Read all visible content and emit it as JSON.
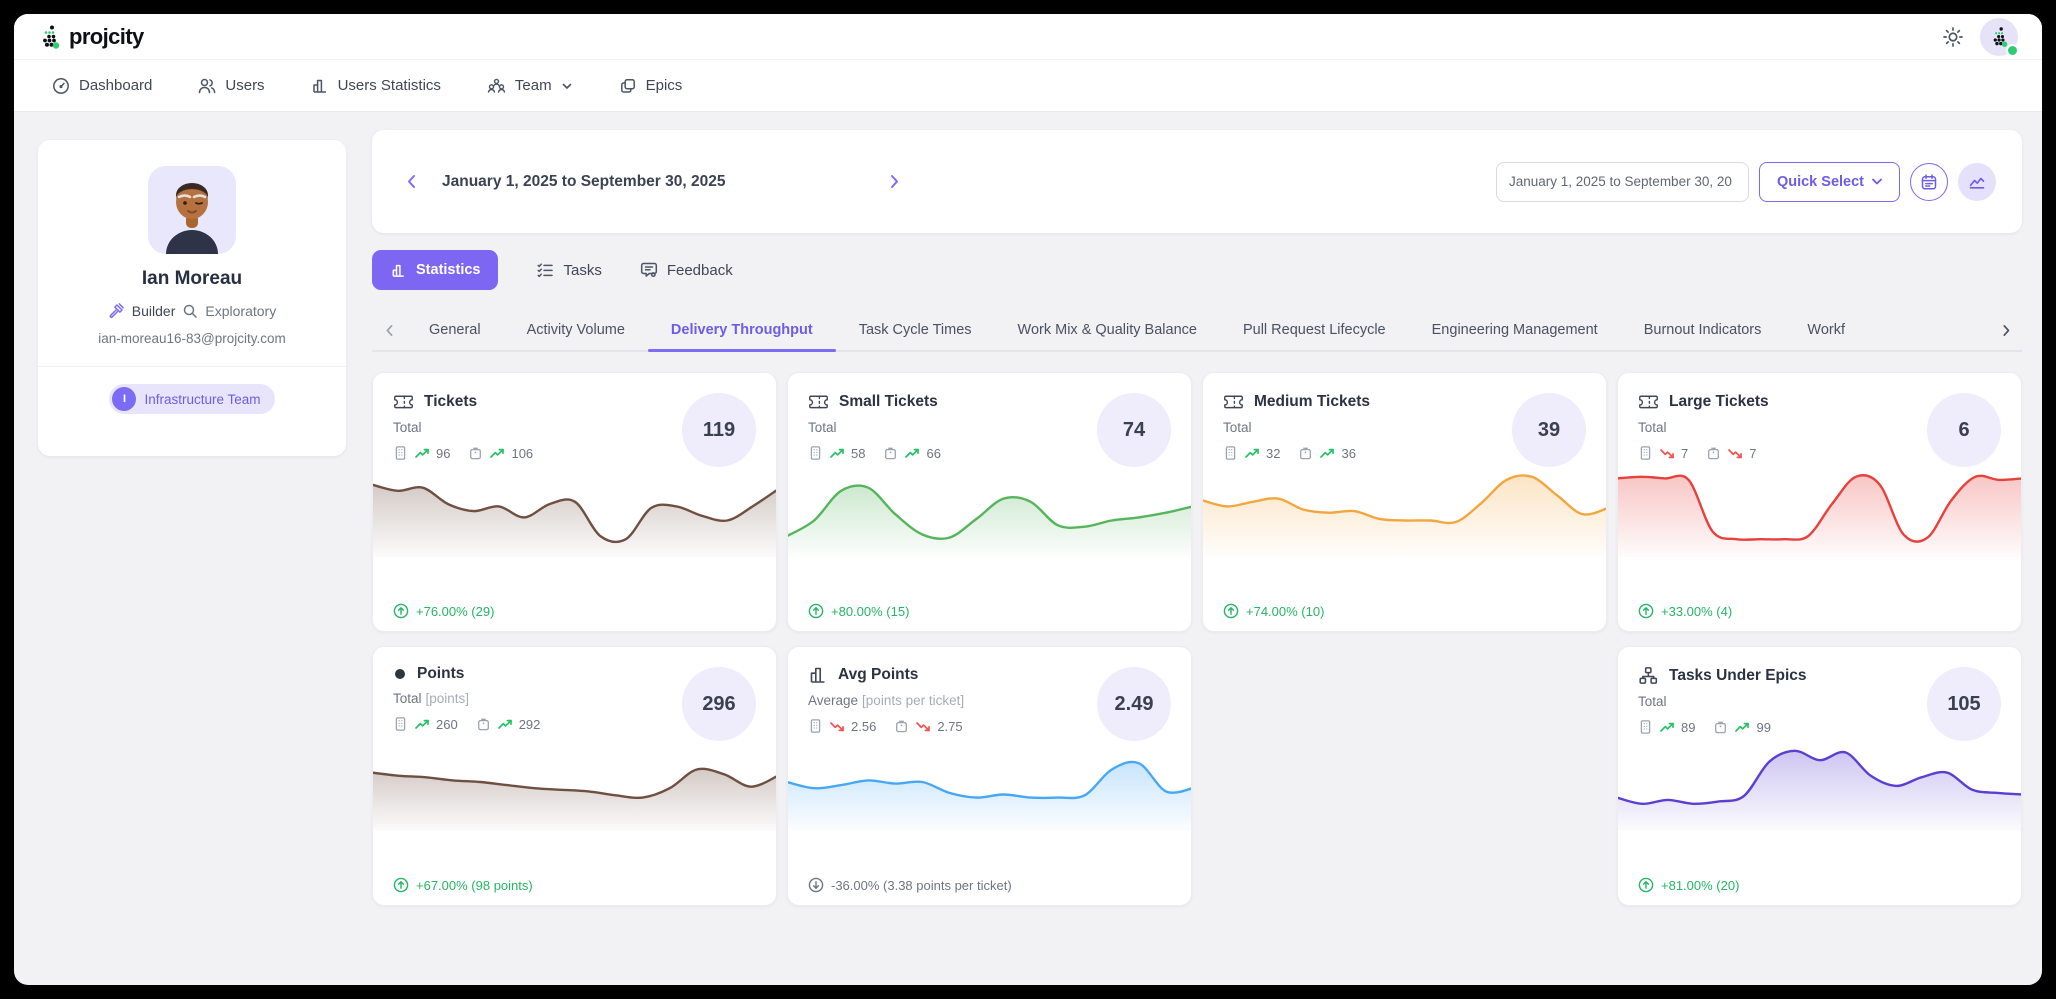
{
  "app": {
    "brand": "projcity"
  },
  "nav": {
    "items": [
      {
        "label": "Dashboard"
      },
      {
        "label": "Users"
      },
      {
        "label": "Users Statistics"
      },
      {
        "label": "Team"
      },
      {
        "label": "Epics"
      }
    ]
  },
  "profile": {
    "name": "Ian Moreau",
    "role": "Builder",
    "trait": "Exploratory",
    "email": "ian-moreau16-83@projcity.com",
    "team_badge": {
      "initial": "I",
      "label": "Infrastructure Team"
    }
  },
  "date_bar": {
    "range_label": "January 1, 2025 to September 30, 2025",
    "input_value": "January 1, 2025 to September 30, 20",
    "quick_select_label": "Quick Select"
  },
  "view_tabs": [
    {
      "label": "Statistics",
      "active": true
    },
    {
      "label": "Tasks",
      "active": false
    },
    {
      "label": "Feedback",
      "active": false
    }
  ],
  "sub_tabs": {
    "items": [
      {
        "label": "General"
      },
      {
        "label": "Activity Volume"
      },
      {
        "label": "Delivery Throughput",
        "active": true
      },
      {
        "label": "Task Cycle Times"
      },
      {
        "label": "Work Mix & Quality Balance"
      },
      {
        "label": "Pull Request Lifecycle"
      },
      {
        "label": "Engineering Management"
      },
      {
        "label": "Burnout Indicators"
      },
      {
        "label": "Workf"
      }
    ]
  },
  "cards": [
    {
      "title": "Tickets",
      "subtitle": "Total",
      "unit": "",
      "org": {
        "value": "96",
        "trend": "up"
      },
      "individual": {
        "value": "106",
        "trend": "up"
      },
      "big_value": "119",
      "change": {
        "text": "+76.00% (29)",
        "direction": "up",
        "tone": "positive"
      },
      "sparkline": {
        "color": "#6f4f41",
        "values": [
          0.8,
          0.72,
          0.76,
          0.55,
          0.46,
          0.52,
          0.38,
          0.55,
          0.58,
          0.14,
          0.1,
          0.5,
          0.52,
          0.4,
          0.34,
          0.52,
          0.74
        ]
      }
    },
    {
      "title": "Small Tickets",
      "subtitle": "Total",
      "unit": "",
      "org": {
        "value": "58",
        "trend": "up"
      },
      "individual": {
        "value": "66",
        "trend": "up"
      },
      "big_value": "74",
      "change": {
        "text": "+80.00% (15)",
        "direction": "up",
        "tone": "positive"
      },
      "sparkline": {
        "color": "#56b45d",
        "values": [
          0.14,
          0.34,
          0.72,
          0.76,
          0.42,
          0.16,
          0.12,
          0.36,
          0.62,
          0.58,
          0.28,
          0.26,
          0.34,
          0.38,
          0.44,
          0.52
        ]
      }
    },
    {
      "title": "Medium Tickets",
      "subtitle": "Total",
      "unit": "",
      "org": {
        "value": "32",
        "trend": "up"
      },
      "individual": {
        "value": "36",
        "trend": "up"
      },
      "big_value": "39",
      "change": {
        "text": "+74.00% (10)",
        "direction": "up",
        "tone": "positive"
      },
      "sparkline": {
        "color": "#f2a63e",
        "values": [
          0.6,
          0.52,
          0.58,
          0.62,
          0.48,
          0.44,
          0.46,
          0.36,
          0.34,
          0.34,
          0.32,
          0.56,
          0.86,
          0.9,
          0.66,
          0.42,
          0.5
        ]
      }
    },
    {
      "title": "Large Tickets",
      "subtitle": "Total",
      "unit": "",
      "org": {
        "value": "7",
        "trend": "down"
      },
      "individual": {
        "value": "7",
        "trend": "down"
      },
      "big_value": "6",
      "change": {
        "text": "+33.00% (4)",
        "direction": "up",
        "tone": "positive"
      },
      "sparkline": {
        "color": "#e6413c",
        "values": [
          0.88,
          0.9,
          0.88,
          0.86,
          0.2,
          0.1,
          0.1,
          0.1,
          0.14,
          0.55,
          0.9,
          0.8,
          0.16,
          0.12,
          0.6,
          0.9,
          0.86,
          0.88
        ]
      }
    },
    {
      "title": "Points",
      "subtitle": "Total",
      "unit": "[points]",
      "org": {
        "value": "260",
        "trend": "up"
      },
      "individual": {
        "value": "292",
        "trend": "up"
      },
      "big_value": "296",
      "change": {
        "text": "+67.00% (98 points)",
        "direction": "up",
        "tone": "positive"
      },
      "sparkline": {
        "color": "#6f4f41",
        "values": [
          0.62,
          0.58,
          0.56,
          0.52,
          0.5,
          0.46,
          0.42,
          0.4,
          0.38,
          0.33,
          0.3,
          0.42,
          0.66,
          0.6,
          0.44,
          0.58
        ]
      }
    },
    {
      "title": "Avg Points",
      "subtitle": "Average",
      "unit": "[points per ticket]",
      "org": {
        "value": "2.56",
        "trend": "down"
      },
      "individual": {
        "value": "2.75",
        "trend": "down"
      },
      "big_value": "2.49",
      "change": {
        "text": "-36.00% (3.38 points per ticket)",
        "direction": "down",
        "tone": "muted"
      },
      "sparkline": {
        "color": "#47a7f5",
        "values": [
          0.5,
          0.42,
          0.46,
          0.52,
          0.48,
          0.5,
          0.36,
          0.3,
          0.34,
          0.3,
          0.3,
          0.33,
          0.66,
          0.74,
          0.38,
          0.42
        ]
      }
    },
    {
      "title": "Tasks Under Epics",
      "subtitle": "Total",
      "unit": "",
      "org": {
        "value": "89",
        "trend": "up"
      },
      "individual": {
        "value": "99",
        "trend": "up"
      },
      "big_value": "105",
      "change": {
        "text": "+81.00% (20)",
        "direction": "up",
        "tone": "positive"
      },
      "sparkline": {
        "color": "#5b3fd1",
        "values": [
          0.3,
          0.22,
          0.27,
          0.22,
          0.25,
          0.32,
          0.76,
          0.9,
          0.78,
          0.88,
          0.58,
          0.45,
          0.56,
          0.62,
          0.4,
          0.36,
          0.34
        ]
      }
    }
  ],
  "colors": {
    "accent": "#6d5ce6",
    "positive": "#25b565",
    "negative": "#ef5350"
  }
}
